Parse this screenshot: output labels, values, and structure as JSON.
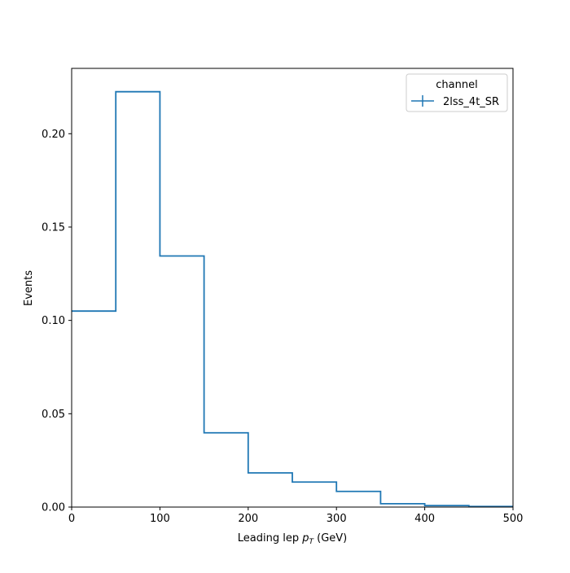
{
  "chart_data": {
    "type": "histogram",
    "title": "",
    "xlabel_main": "Leading lep ",
    "xlabel_sym": "p",
    "xlabel_sub": "T",
    "xlabel_unit": " (GeV)",
    "ylabel": "Events",
    "xlim": [
      0,
      500
    ],
    "ylim": [
      0,
      0.235
    ],
    "x_ticks": [
      0,
      100,
      200,
      300,
      400,
      500
    ],
    "x_tick_labels": [
      "0",
      "100",
      "200",
      "300",
      "400",
      "500"
    ],
    "y_ticks": [
      0.0,
      0.05,
      0.1,
      0.15,
      0.2
    ],
    "y_tick_labels": [
      "0.00",
      "0.05",
      "0.10",
      "0.15",
      "0.20"
    ],
    "grid": false,
    "legend": {
      "title": "channel",
      "placement": "top-right",
      "entries": [
        "2lss_4t_SR"
      ]
    },
    "series": [
      {
        "name": "2lss_4t_SR",
        "color": "#1f77b4",
        "bin_edges": [
          0,
          50,
          100,
          150,
          200,
          250,
          300,
          350,
          400,
          450,
          500
        ],
        "values": [
          0.105,
          0.2225,
          0.1345,
          0.0398,
          0.0183,
          0.0134,
          0.0084,
          0.0018,
          0.0008,
          0.0003
        ]
      }
    ]
  }
}
